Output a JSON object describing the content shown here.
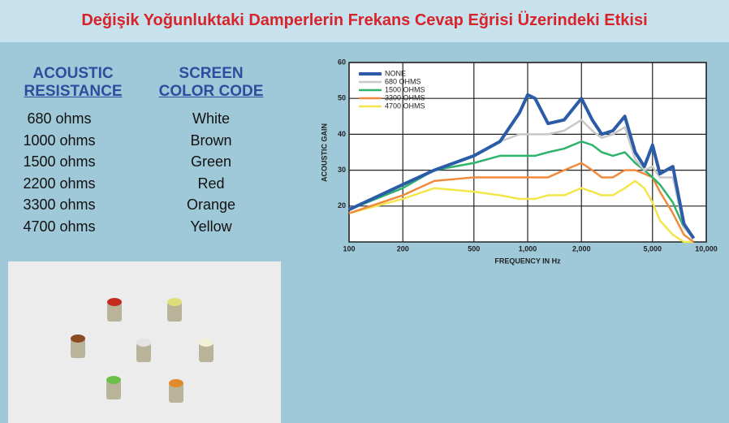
{
  "title": "Değişik Yoğunluktaki Damperlerin Frekans Cevap Eğrisi Üzerindeki Etkisi",
  "table": {
    "headers": [
      [
        "ACOUSTIC",
        "RESISTANCE"
      ],
      [
        "SCREEN",
        "COLOR CODE"
      ]
    ],
    "rows": [
      [
        "680 ohms",
        "White"
      ],
      [
        "1000 ohms",
        "Brown"
      ],
      [
        "1500 ohms",
        "Green"
      ],
      [
        "2200 ohms",
        "Red"
      ],
      [
        "3300 ohms",
        "Orange"
      ],
      [
        "4700 ohms",
        "Yellow"
      ]
    ]
  },
  "chart_data": {
    "type": "line",
    "x_label": "FREQUENCY IN Hz",
    "y_label": "ACOUSTIC GAIN",
    "x_scale": "log",
    "grid": true,
    "legend": "upper left",
    "x": [
      100,
      200,
      300,
      500,
      700,
      900,
      1000,
      1100,
      1300,
      1600,
      2000,
      2300,
      2600,
      3000,
      3500,
      4000,
      4500,
      5000,
      5500,
      6500,
      7500,
      8500
    ],
    "xlim": [
      100,
      10000
    ],
    "xticks": [
      100,
      200,
      500,
      {
        "value": 1000,
        "label": "1,000"
      },
      {
        "value": 2000,
        "label": "2,000"
      },
      {
        "value": 5000,
        "label": "5,000"
      },
      {
        "value": 10000,
        "label": "10,000"
      }
    ],
    "ylim": [
      10,
      60
    ],
    "yticks": [
      20,
      30,
      40,
      50,
      60
    ],
    "series": [
      {
        "name": "NONE",
        "color": "#2a5ca8",
        "values": [
          19,
          26,
          30,
          34,
          38,
          46,
          51,
          50,
          43,
          44,
          50,
          44,
          40,
          41,
          45,
          35,
          31,
          37,
          29,
          31,
          15,
          11
        ]
      },
      {
        "name": "680 OHMS",
        "color": "#c8c8c8",
        "values": [
          19,
          26,
          30,
          34,
          38,
          40,
          40,
          40,
          40,
          41,
          44,
          41,
          39,
          40,
          42,
          33,
          30,
          31,
          28,
          28,
          14,
          11
        ]
      },
      {
        "name": "1500 OHMS",
        "color": "#2fb36a",
        "values": [
          19,
          25,
          30,
          32,
          34,
          34,
          34,
          34,
          35,
          36,
          38,
          37,
          35,
          34,
          35,
          32,
          30,
          28,
          26,
          21,
          14,
          11
        ]
      },
      {
        "name": "3300 OHMS",
        "color": "#f08a3c",
        "values": [
          18,
          23,
          27,
          28,
          28,
          28,
          28,
          28,
          28,
          30,
          32,
          30,
          28,
          28,
          30,
          30,
          29,
          28,
          24,
          18,
          12,
          10
        ]
      },
      {
        "name": "4700 OHMS",
        "color": "#f2e64a",
        "values": [
          18,
          22,
          25,
          24,
          23,
          22,
          22,
          22,
          23,
          23,
          25,
          24,
          23,
          23,
          25,
          27,
          25,
          21,
          16,
          12,
          10,
          10
        ]
      }
    ]
  }
}
